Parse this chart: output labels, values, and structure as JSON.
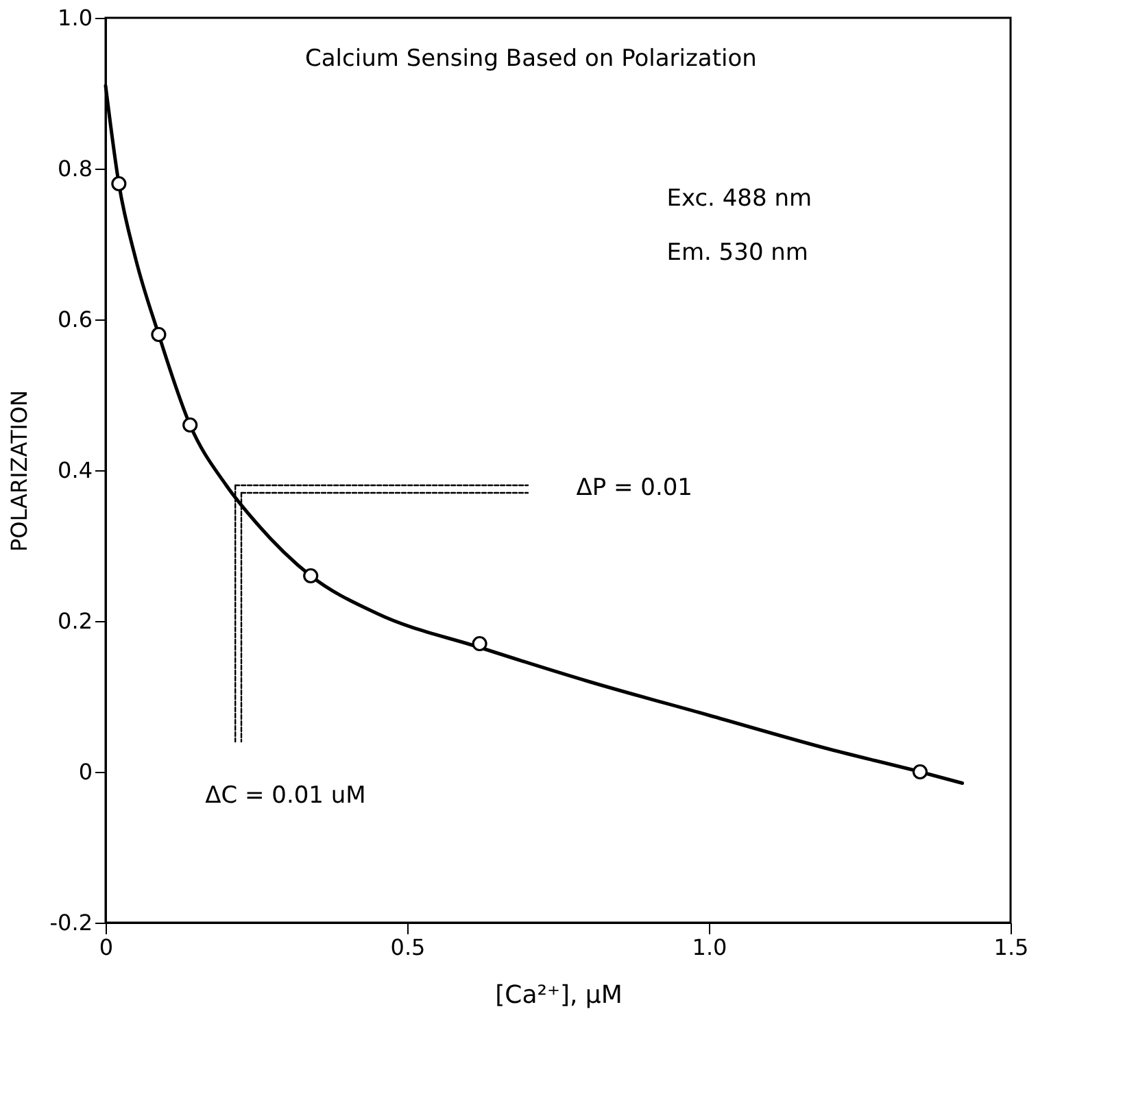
{
  "chart_data": {
    "type": "scatter",
    "title": "Calcium Sensing Based on Polarization",
    "xlabel": "[Ca²⁺], μM",
    "ylabel": "POLARIZATION",
    "series": [
      {
        "color": "#000000",
        "marker": "circle",
        "x": [
          0.022,
          0.088,
          0.14,
          0.34,
          0.62,
          1.35
        ],
        "values": [
          0.78,
          0.58,
          0.46,
          0.26,
          0.17,
          0.0
        ]
      },
      {
        "type": "line",
        "color": "#000000",
        "marker": "none",
        "line_style": "solid",
        "x": [
          0.0,
          0.022,
          0.05,
          0.088,
          0.14,
          0.2,
          0.25,
          0.34,
          0.45,
          0.62,
          0.8,
          1.0,
          1.2,
          1.35,
          1.42
        ],
        "values": [
          0.91,
          0.78,
          0.68,
          0.58,
          0.46,
          0.38,
          0.33,
          0.26,
          0.21,
          0.165,
          0.12,
          0.075,
          0.03,
          0.0,
          -0.015
        ]
      },
      {
        "type": "line",
        "color": "#000000",
        "marker": "none",
        "line_style": "dashed",
        "x": [
          0.215,
          0.7
        ],
        "values": [
          0.38,
          0.38
        ]
      },
      {
        "type": "line",
        "color": "#000000",
        "marker": "none",
        "line_style": "dashed",
        "x": [
          0.225,
          0.7
        ],
        "values": [
          0.37,
          0.37
        ]
      },
      {
        "type": "line",
        "color": "#000000",
        "marker": "none",
        "line_style": "dashed",
        "x": [
          0.215,
          0.215
        ],
        "values": [
          0.38,
          0.04
        ]
      },
      {
        "type": "line",
        "color": "#000000",
        "marker": "none",
        "line_style": "dashed",
        "x": [
          0.225,
          0.225
        ],
        "values": [
          0.37,
          0.04
        ]
      }
    ],
    "annotations": [
      "Exc. 488 nm",
      "Em. 530 nm",
      "ΔP = 0.01",
      "ΔC = 0.01 uM"
    ],
    "xlim": [
      0,
      1.5
    ],
    "xticks": [
      0,
      0.5,
      {
        "value": 1,
        "label": "1.0"
      },
      1.5
    ],
    "ylim": [
      -0.2,
      1.0
    ],
    "yticks": [
      -0.2,
      0,
      0.2,
      0.4,
      0.6,
      0.8,
      {
        "value": 1,
        "label": "1.0"
      }
    ],
    "grid": false
  }
}
